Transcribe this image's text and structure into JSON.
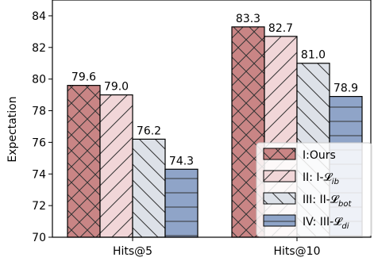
{
  "chart_data": {
    "type": "bar",
    "categories": [
      "Hits@5",
      "Hits@10"
    ],
    "ylabel": "Expectation",
    "xlabel": "",
    "title": "",
    "ylim": [
      70,
      85
    ],
    "yticks": [
      70,
      72,
      74,
      76,
      78,
      80,
      82,
      84
    ],
    "grid": false,
    "legend_position": "bottom-right",
    "series": [
      {
        "name": "I:Ours",
        "legend": {
          "main": "I:Ours",
          "sub": ""
        },
        "values": [
          79.6,
          83.3
        ],
        "labels": [
          "79.6",
          "83.3"
        ],
        "color": "#c98585",
        "hatch": "cross"
      },
      {
        "name": "II: I-L_ib",
        "legend": {
          "main": "II: I-𝓛",
          "sub": "ib"
        },
        "values": [
          79.0,
          82.7
        ],
        "labels": [
          "79.0",
          "82.7"
        ],
        "color": "#f1d6d8",
        "hatch": "forward"
      },
      {
        "name": "III: II-L_bot",
        "legend": {
          "main": "III: II-𝓛",
          "sub": "bot"
        },
        "values": [
          76.2,
          81.0
        ],
        "labels": [
          "76.2",
          "81.0"
        ],
        "color": "#dde1e8",
        "hatch": "back"
      },
      {
        "name": "IV: III-L_di",
        "legend": {
          "main": "IV: III-𝓛",
          "sub": "di"
        },
        "values": [
          74.3,
          78.9
        ],
        "labels": [
          "74.3",
          "78.9"
        ],
        "color": "#8fa4c8",
        "hatch": "horizontal"
      }
    ]
  }
}
